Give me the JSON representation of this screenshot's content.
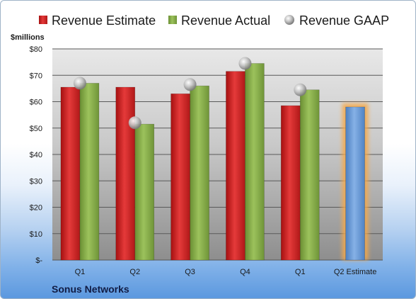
{
  "chart_data": {
    "type": "bar",
    "company": "Sonus Networks",
    "unit_label": "$millions",
    "categories": [
      "Q1",
      "Q2",
      "Q3",
      "Q4",
      "Q1",
      "Q2 Estimate"
    ],
    "series": [
      {
        "name": "Revenue Estimate",
        "type": "bar",
        "color": "#d92a2a",
        "values": [
          65.5,
          65.5,
          63,
          71.5,
          58.5,
          null
        ]
      },
      {
        "name": "Revenue Actual",
        "type": "bar",
        "color": "#8db04e",
        "values": [
          67,
          51.5,
          66,
          74.5,
          64.5,
          null
        ]
      },
      {
        "name": "Revenue GAAP",
        "type": "marker",
        "color": "#c0c0c0",
        "values": [
          67,
          52,
          66.5,
          74.5,
          64.5,
          null
        ]
      },
      {
        "name": "Q2 Estimate",
        "type": "bar",
        "color": "#6f9fd8",
        "values": [
          null,
          null,
          null,
          null,
          null,
          58
        ]
      }
    ],
    "y_ticks": [
      "$-",
      "$10",
      "$20",
      "$30",
      "$40",
      "$50",
      "$60",
      "$70",
      "$80"
    ],
    "ylim": [
      0,
      80
    ],
    "legend_position": "top"
  }
}
